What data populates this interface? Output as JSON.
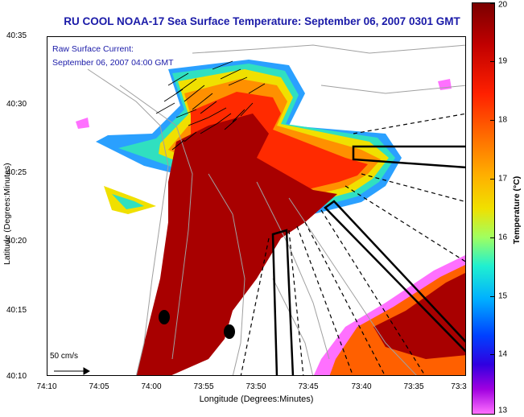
{
  "title": "RU COOL  NOAA-17  Sea Surface Temperature:  September 06, 2007 0301 GMT",
  "legend": {
    "line1": "Raw Surface Current:",
    "line2": "September 06, 2007 04:00 GMT"
  },
  "scale_label": "50 cm/s",
  "axes": {
    "xlabel": "Longitude (Degrees:Minutes)",
    "ylabel": "Latitude (Degrees:Minutes)",
    "xticks": [
      "74:10",
      "74:05",
      "74:00",
      "73:55",
      "73:50",
      "73:45",
      "73:40",
      "73:35",
      "73:3"
    ],
    "yticks": [
      "40:35",
      "40:30",
      "40:25",
      "40:20",
      "40:15",
      "40:10"
    ]
  },
  "colorbar": {
    "label": "Temperature (°C)",
    "ticks": [
      "20",
      "19",
      "18",
      "17",
      "16",
      "15",
      "14",
      "13"
    ],
    "range": [
      13,
      20
    ]
  },
  "colors": {
    "title": "#1a1aa8",
    "land": "#ffffff",
    "warm_core": "#a80000"
  }
}
